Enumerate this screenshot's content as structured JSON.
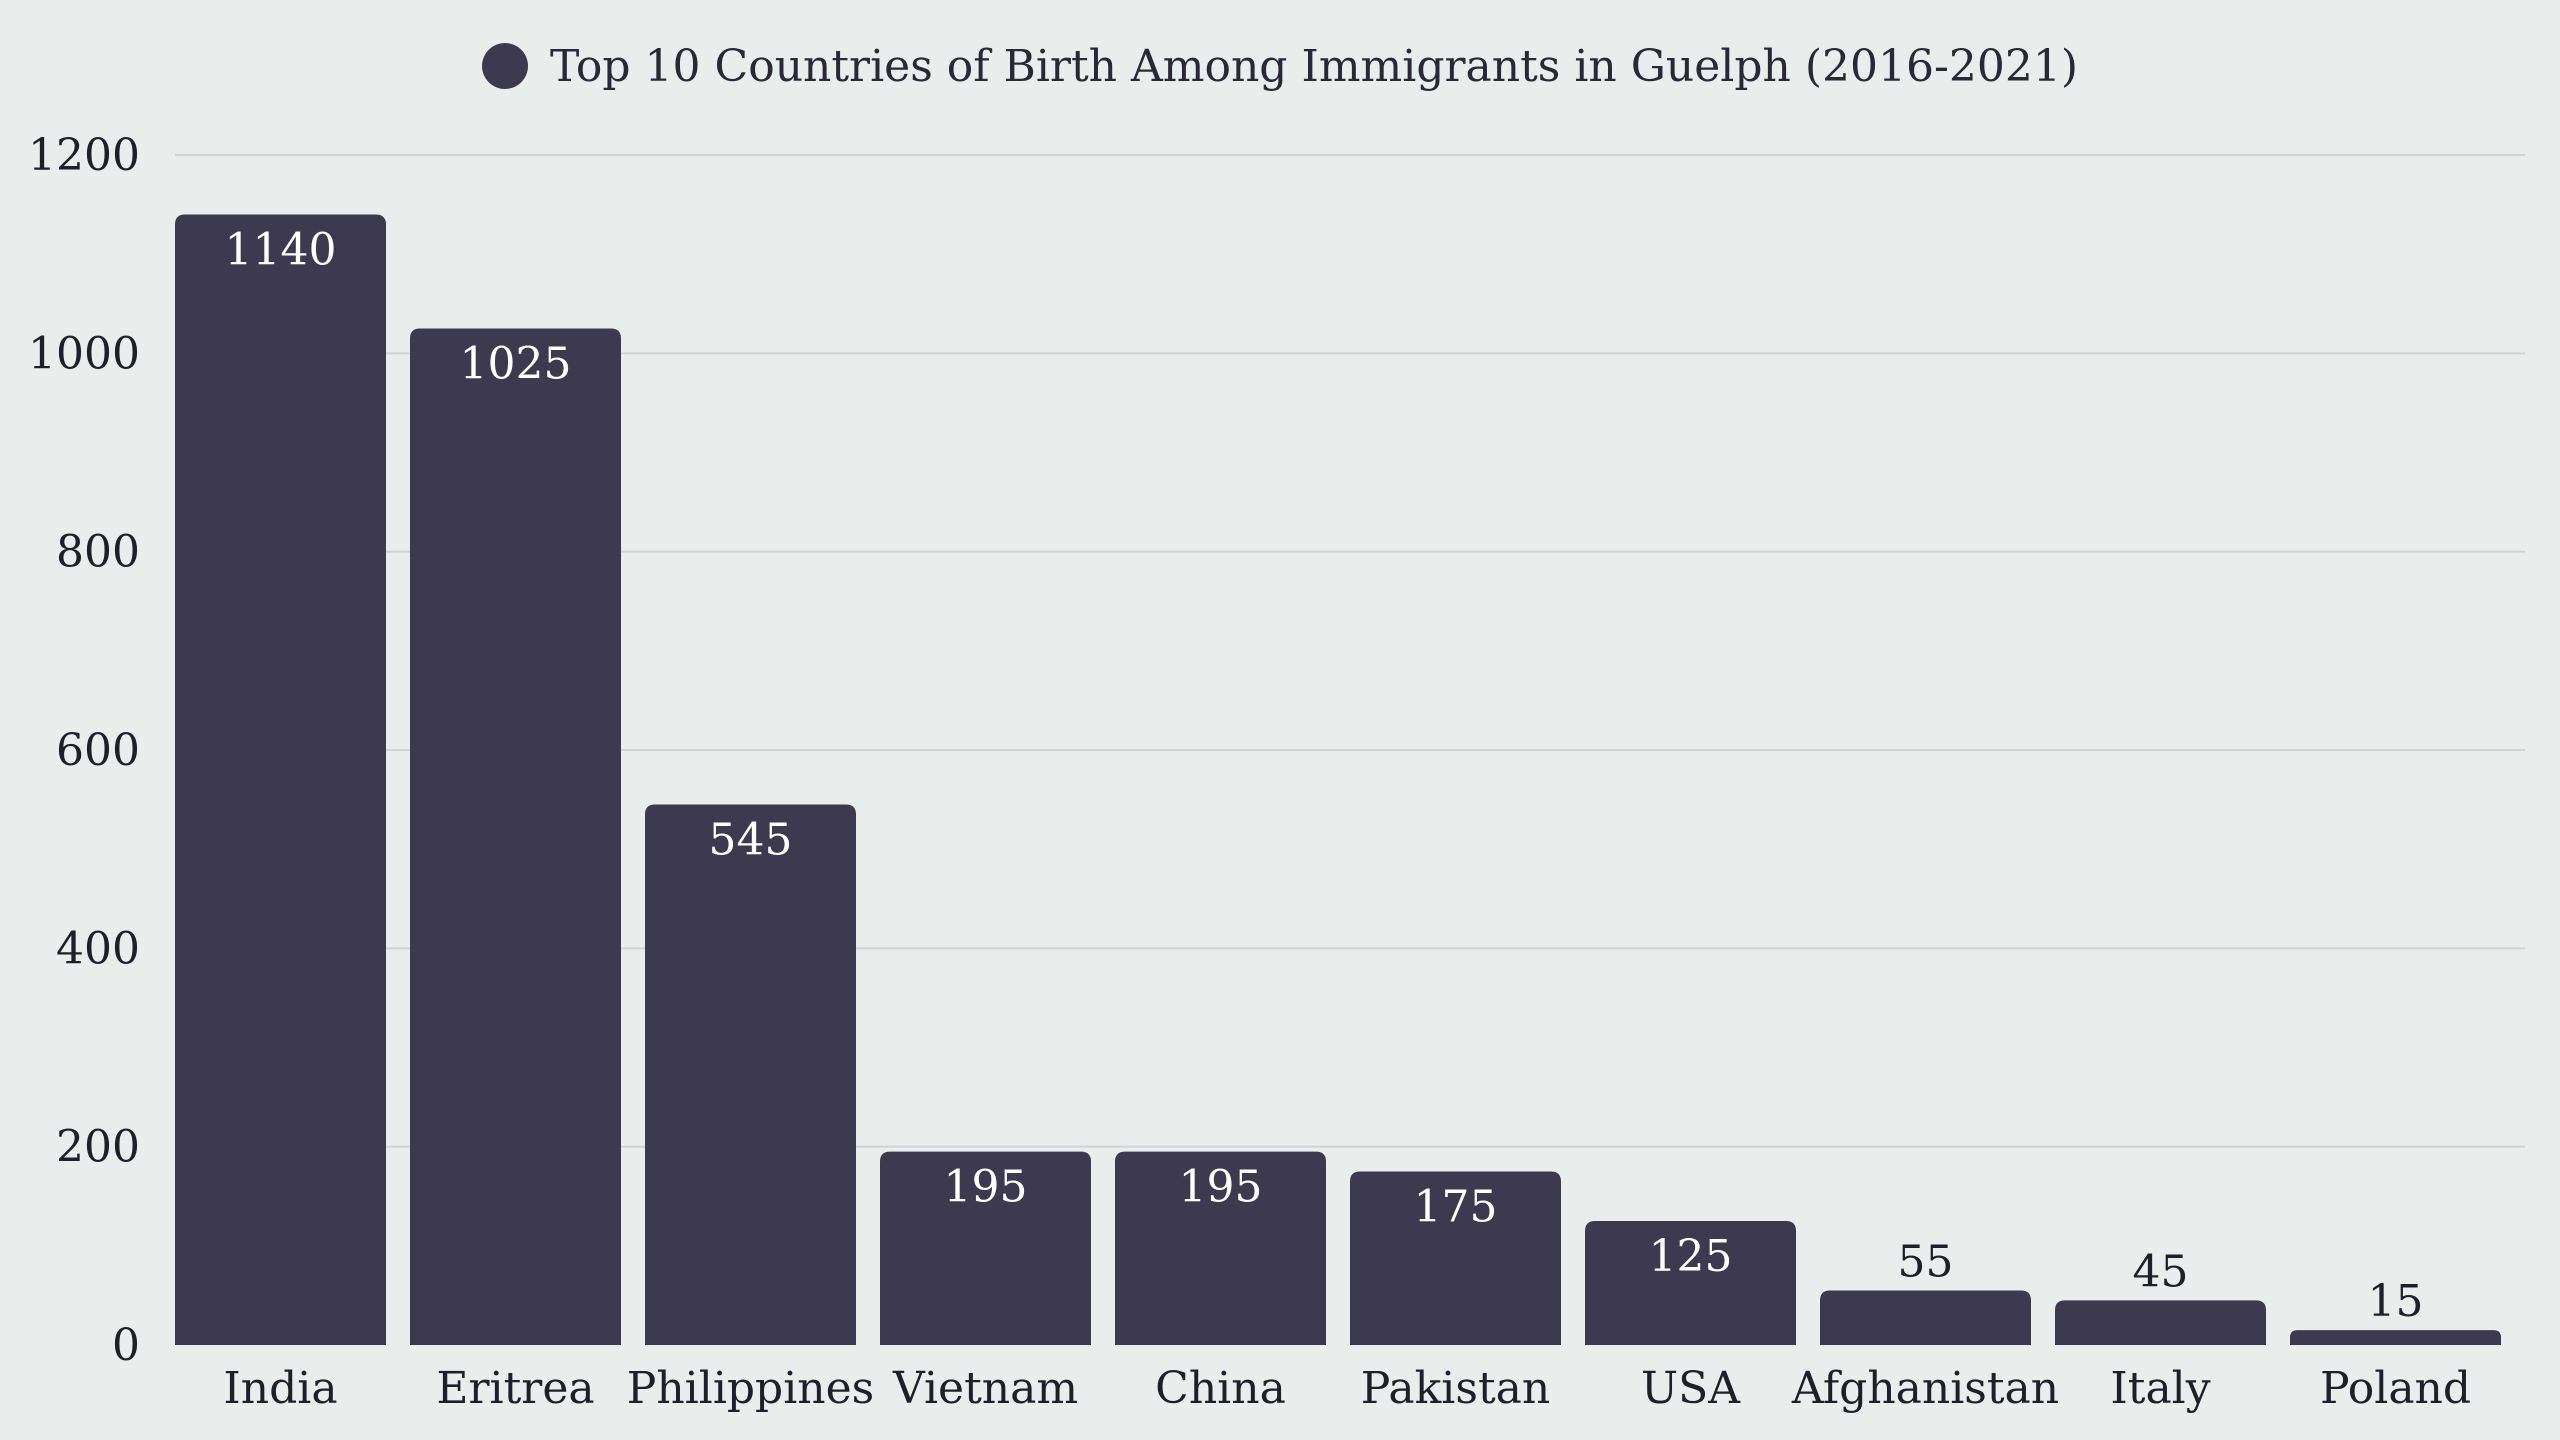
{
  "chart_data": {
    "type": "bar",
    "title": "",
    "xlabel": "",
    "ylabel": "",
    "categories": [
      "India",
      "Eritrea",
      "Philippines",
      "Vietnam",
      "China",
      "Pakistan",
      "USA",
      "Afghanistan",
      "Italy",
      "Poland"
    ],
    "series": [
      {
        "name": "Top 10 Countries of Birth Among Immigrants in Guelph (2016-2021)",
        "values": [
          1140,
          1025,
          545,
          195,
          195,
          175,
          125,
          55,
          45,
          15
        ],
        "color": "#3d394f"
      }
    ],
    "ylim": [
      0,
      1200
    ],
    "yticks": [
      0,
      200,
      400,
      600,
      800,
      1000,
      1200
    ],
    "grid": true,
    "legend_position": "top-center",
    "label_color_inside": "#ffffff",
    "label_color_outside": "#1f1e2b"
  }
}
